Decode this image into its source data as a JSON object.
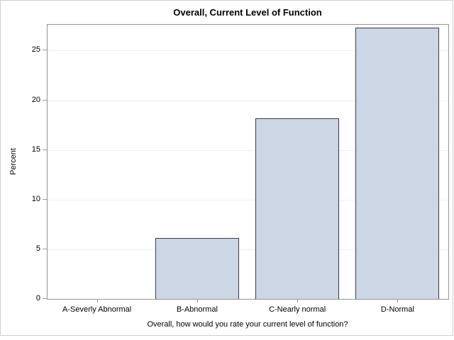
{
  "chart_data": {
    "type": "bar",
    "title": "Overall, Current Level of Function",
    "categories": [
      "A-Severly Abnormal",
      "B-Abnormal",
      "C-Nearly normal",
      "D-Normal"
    ],
    "values": [
      0,
      6.1,
      18.2,
      27.3
    ],
    "xlabel": "Overall, how would you rate your current level of function?",
    "ylabel": "Percent",
    "ylim": [
      0,
      27.6
    ],
    "yticks": [
      0,
      5,
      10,
      15,
      20,
      25
    ],
    "grid": "horizontal gridlines at each y tick",
    "legend": "none",
    "colors": {
      "bar_fill": "#ccd6e4",
      "bar_border": "#3b3b3b",
      "gridline": "#f0f0f0",
      "axis_frame": "#949494",
      "tick": "#9a9a9a",
      "text": "#000000",
      "figure_border": "#cfcfcf",
      "background": "#ffffff"
    }
  }
}
